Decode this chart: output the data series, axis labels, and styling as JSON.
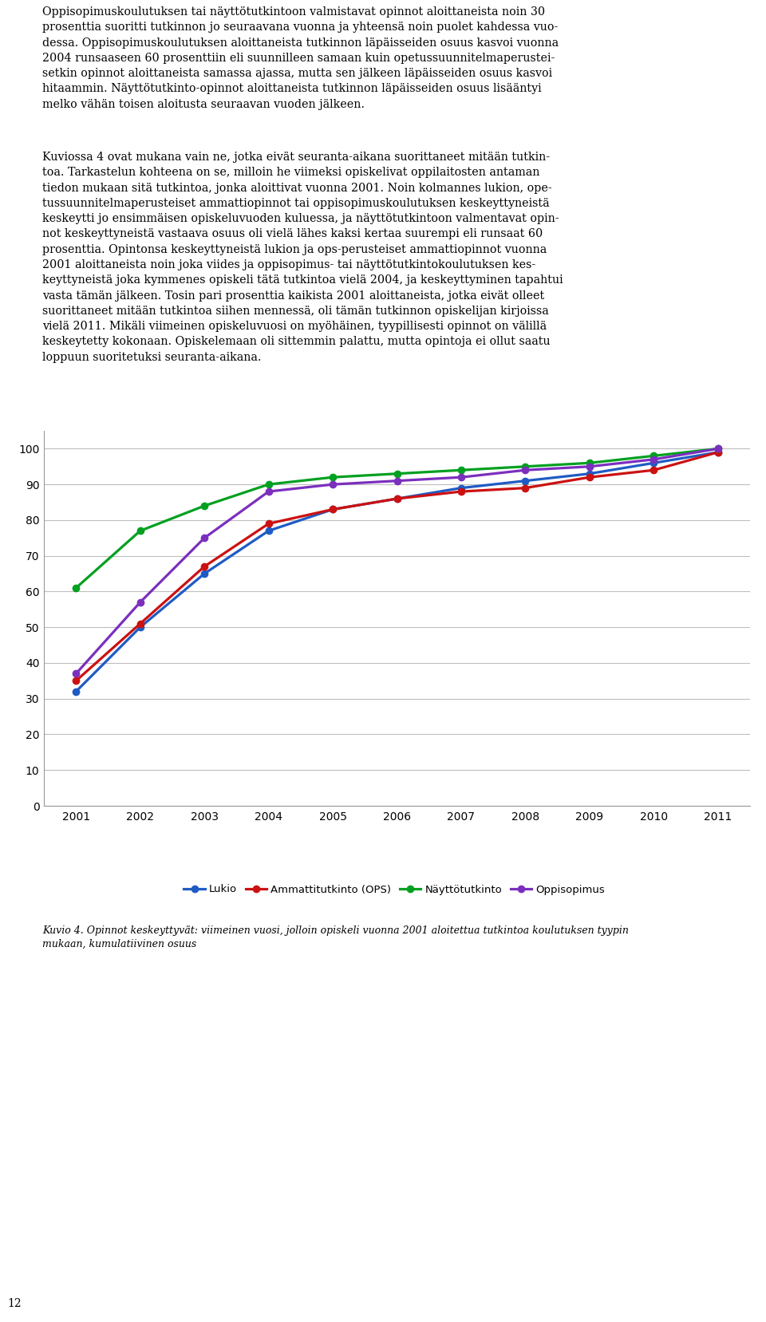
{
  "years": [
    2001,
    2002,
    2003,
    2004,
    2005,
    2006,
    2007,
    2008,
    2009,
    2010,
    2011
  ],
  "series": [
    {
      "label": "Lukio",
      "color": "#1F5BC4",
      "values": [
        32,
        50,
        65,
        77,
        83,
        86,
        89,
        91,
        93,
        96,
        99
      ]
    },
    {
      "label": "Ammattitutkinto (OPS)",
      "color": "#CC1111",
      "values": [
        35,
        51,
        67,
        79,
        83,
        86,
        88,
        89,
        92,
        94,
        99
      ]
    },
    {
      "label": "Näyttötutkinto",
      "color": "#00A020",
      "values": [
        61,
        77,
        84,
        90,
        92,
        93,
        94,
        95,
        96,
        98,
        100
      ]
    },
    {
      "label": "Oppisopimus",
      "color": "#7B2FBE",
      "values": [
        37,
        57,
        75,
        88,
        90,
        91,
        92,
        94,
        95,
        97,
        100
      ]
    }
  ],
  "ylim": [
    0,
    105
  ],
  "yticks": [
    0,
    10,
    20,
    30,
    40,
    50,
    60,
    70,
    80,
    90,
    100
  ],
  "background_color": "#ffffff",
  "plot_bg_color": "#ffffff",
  "grid_color": "#BEBEBE",
  "para1": "Oppisopimuskoulutuksen tai näyttötutkintoon valmistavat opinnot aloittaneista noin 30\nprosenttia suoritti tutkinnon jo seuraavana vuonna ja yhteensä noin puolet kahdessa vuo-\ndessa. Oppisopimuskoulutuksen aloittaneista tutkinnon läpäisseiden osuus kasvoi vuonna\n2004 runsaaseen 60 prosenttiin eli suunnilleen samaan kuin opetussuunnitelmaperustei-\nsetkin opinnot aloittaneista samassa ajassa, mutta sen jälkeen läpäisseiden osuus kasvoi\nhitaammin. Näyttötutkinto-opinnot aloittaneista tutkinnon läpäisseiden osuus lisääntyi\nmelko vähän toisen aloitusta seuraavan vuoden jälkeen.",
  "para2": "Kuviossa 4 ovat mukana vain ne, jotka eivät seuranta-aikana suorittaneet mitään tutkin-\ntoa. Tarkastelun kohteena on se, milloin he viimeksi opiskelivat oppilaitosten antaman\ntiedon mukaan sitä tutkintoa, jonka aloittivat vuonna 2001. Noin kolmannes lukion, ope-\ntussuunnitelmaperusteiset ammattiopinnot tai oppisopimuskoulutuksen keskeyttyneistä\nkeskeytti jo ensimmäisen opiskeluvuoden kuluessa, ja näyttötutkintoon valmentavat opin-\nnot keskeyttyneistä vastaava osuus oli vielä lähes kaksi kertaa suurempi eli runsaat 60\nprosenttia. Opintonsa keskeyttyneistä lukion ja ops-perusteiset ammattiopinnot vuonna\n2001 aloittaneista noin joka viides ja oppisopimus- tai näyttötutkintokoulutuksen kes-\nkeyttyneistä joka kymmenes opiskeli tätä tutkintoa vielä 2004, ja keskeyttyminen tapahtui\nvasta tämän jälkeen. Tosin pari prosenttia kaikista 2001 aloittaneista, jotka eivät olleet\nsuorittaneet mitään tutkintoa siihen mennessä, oli tämän tutkinnon opiskelijan kirjoissa\nvielä 2011. Mikäli viimeinen opiskeluvuosi on myöhäinen, tyypillisesti opinnot on välillä\nkeskeytetty kokonaan. Opiskelemaan oli sittemmin palattu, mutta opintoja ei ollut saatu\nloppuun suoritetuksi seuranta-aikana.",
  "caption": "Kuvio 4. Opinnot keskeyttyvät: viimeinen vuosi, jolloin opiskeli vuonna 2001 aloitettua tutkintoa koulutuksen tyypin\nmukaan, kumulatiivinen osuus",
  "page_number": "12"
}
